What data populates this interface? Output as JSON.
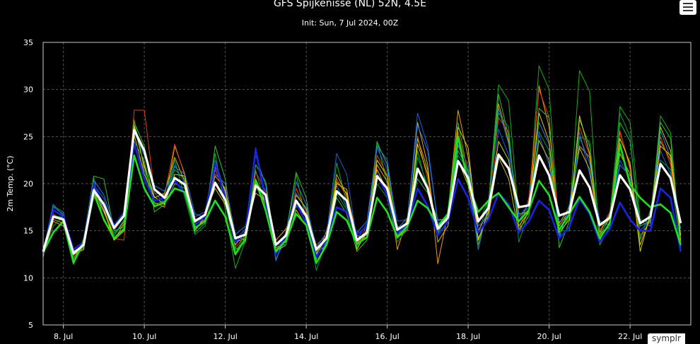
{
  "chart_data": {
    "type": "line",
    "title": "GFS Spijkenisse (NL) 52N, 4.5E",
    "subtitle": "Init: Sun, 7 Jul 2024, 00Z",
    "ylabel": "2m Temp. (°C)",
    "xlabel": "",
    "ylim": [
      5,
      35
    ],
    "yticks": [
      5,
      10,
      15,
      20,
      25,
      30,
      35
    ],
    "xlim_days": [
      7.5,
      23.5
    ],
    "xticks": [
      {
        "day": 8,
        "label": "8. Jul"
      },
      {
        "day": 10,
        "label": "10. Jul"
      },
      {
        "day": 12,
        "label": "12. Jul"
      },
      {
        "day": 14,
        "label": "14. Jul"
      },
      {
        "day": 16,
        "label": "16. Jul"
      },
      {
        "day": 18,
        "label": "18. Jul"
      },
      {
        "day": 20,
        "label": "20. Jul"
      },
      {
        "day": 22,
        "label": "22. Jul"
      }
    ],
    "grid": true,
    "legend": "none",
    "x_step_hours": 6,
    "colors": {
      "background": "#000000",
      "grid": "#555555",
      "frame": "#cccccc",
      "mean": "#ffffff",
      "control": "#22dd22",
      "operational": "#1a24e0"
    },
    "series": [
      {
        "color": "#ffffff",
        "width": 3.2,
        "values": [
          12.8,
          16.5,
          16.2,
          12.6,
          13.5,
          19.3,
          17.8,
          15.3,
          16.6,
          25.7,
          23.5,
          19.4,
          18.5,
          20.6,
          19.9,
          16.0,
          16.7,
          20.1,
          18.3,
          14.2,
          14.6,
          19.8,
          18.8,
          13.5,
          14.5,
          18.2,
          16.6,
          13.0,
          14.2,
          19.2,
          18.2,
          14.0,
          14.8,
          20.8,
          19.5,
          15.1,
          15.8,
          21.6,
          19.5,
          15.2,
          16.4,
          22.4,
          20.6,
          16.0,
          17.4,
          23.1,
          21.6,
          17.5,
          17.7,
          23.0,
          20.9,
          16.6,
          17.0,
          21.4,
          19.6,
          15.6,
          16.4,
          20.9,
          19.4,
          15.8,
          16.5,
          22.1,
          20.6,
          15.8
        ]
      },
      {
        "color": "#22dd22",
        "width": 2.6,
        "values": [
          12.7,
          14.8,
          16.0,
          11.6,
          13.8,
          19.0,
          16.2,
          14.2,
          15.2,
          23.0,
          19.5,
          17.6,
          18.0,
          19.5,
          19.1,
          15.3,
          16.0,
          18.2,
          16.5,
          12.5,
          14.2,
          20.3,
          17.1,
          12.8,
          14.0,
          16.8,
          15.6,
          11.6,
          13.5,
          17.0,
          16.1,
          13.6,
          14.3,
          18.5,
          17.0,
          14.3,
          15.5,
          18.2,
          17.4,
          15.5,
          16.8,
          25.0,
          20.0,
          17.0,
          18.2,
          19.0,
          17.5,
          16.0,
          17.2,
          20.3,
          18.8,
          15.1,
          16.8,
          18.6,
          17.0,
          14.2,
          15.8,
          24.2,
          19.9,
          18.5,
          17.5,
          17.8,
          16.9,
          13.5
        ]
      },
      {
        "color": "#1a24e0",
        "width": 2.6,
        "values": [
          12.5,
          17.2,
          16.5,
          13.0,
          13.8,
          20.0,
          17.5,
          15.5,
          16.8,
          24.3,
          20.5,
          18.2,
          18.5,
          20.3,
          19.0,
          15.6,
          16.5,
          22.2,
          18.5,
          13.8,
          14.8,
          23.6,
          18.0,
          12.5,
          14.6,
          18.0,
          15.8,
          12.2,
          14.1,
          17.5,
          17.0,
          14.6,
          15.4,
          21.0,
          18.8,
          14.8,
          15.6,
          19.5,
          17.6,
          14.5,
          16.0,
          20.5,
          18.5,
          14.8,
          16.2,
          19.0,
          17.8,
          14.8,
          16.0,
          18.2,
          17.2,
          14.2,
          15.4,
          18.4,
          16.8,
          13.8,
          15.2,
          18.0,
          16.2,
          15.0,
          15.0,
          19.5,
          18.5,
          12.8
        ]
      },
      {
        "color": "#10b010",
        "width": 1,
        "values": [
          12.6,
          17.6,
          17.0,
          11.4,
          14.2,
          20.6,
          16.0,
          14.8,
          15.6,
          26.8,
          21.5,
          17.8,
          18.2,
          21.5,
          20.5,
          16.2,
          16.6,
          23.2,
          17.2,
          11.0,
          14.0,
          21.4,
          17.5,
          12.6,
          14.8,
          21.0,
          16.0,
          12.5,
          13.8,
          22.2,
          18.0,
          13.2,
          15.2,
          24.5,
          20.0,
          15.5,
          15.0,
          23.5,
          19.2,
          14.6,
          17.0,
          26.5,
          21.0,
          14.8,
          18.0,
          30.5,
          28.8,
          16.5,
          17.5,
          32.5,
          30.0,
          14.5,
          16.5,
          32.0,
          29.8,
          13.5,
          15.5,
          28.2,
          26.5,
          16.2,
          15.8,
          27.2,
          25.4,
          13.2
        ]
      },
      {
        "color": "#f0a000",
        "width": 1,
        "values": [
          12.4,
          16.0,
          15.5,
          12.8,
          13.5,
          19.5,
          17.4,
          14.0,
          15.8,
          26.0,
          22.0,
          18.0,
          17.5,
          24.0,
          21.0,
          15.2,
          16.2,
          20.8,
          19.5,
          13.5,
          15.0,
          19.0,
          18.2,
          14.0,
          15.2,
          17.8,
          16.4,
          12.0,
          15.0,
          20.2,
          19.0,
          14.5,
          14.2,
          22.0,
          20.2,
          13.0,
          16.4,
          26.5,
          22.0,
          11.5,
          16.8,
          27.8,
          22.8,
          15.0,
          17.0,
          28.5,
          24.5,
          16.8,
          17.0,
          30.4,
          26.0,
          15.8,
          17.5,
          24.0,
          22.8,
          14.0,
          16.0,
          25.5,
          21.8,
          14.2,
          16.2,
          24.5,
          22.5,
          13.8
        ]
      },
      {
        "color": "#e04000",
        "width": 1,
        "values": [
          12.9,
          16.8,
          16.0,
          12.2,
          13.2,
          19.0,
          18.0,
          14.2,
          14.0,
          27.8,
          27.8,
          19.0,
          18.8,
          24.2,
          20.8,
          15.8,
          16.0,
          21.5,
          18.8,
          13.2,
          14.5,
          21.2,
          19.2,
          13.0,
          14.0,
          19.5,
          17.0,
          13.5,
          14.5,
          20.5,
          18.6,
          13.5,
          15.5,
          23.0,
          21.0,
          14.5,
          15.0,
          25.0,
          20.4,
          14.8,
          16.8,
          25.5,
          21.2,
          16.2,
          17.5,
          27.0,
          25.5,
          15.0,
          18.5,
          30.0,
          27.0,
          15.0,
          16.6,
          26.0,
          23.0,
          15.0,
          17.0,
          25.6,
          21.5,
          14.5,
          16.0,
          25.0,
          22.0,
          14.5
        ]
      },
      {
        "color": "#1a60d8",
        "width": 1,
        "values": [
          12.6,
          17.5,
          16.8,
          12.9,
          13.9,
          19.9,
          18.4,
          15.0,
          16.5,
          24.0,
          21.5,
          19.0,
          18.0,
          22.0,
          20.0,
          16.5,
          17.0,
          22.5,
          19.0,
          14.0,
          15.2,
          23.8,
          18.5,
          12.0,
          14.2,
          19.0,
          17.2,
          12.8,
          14.5,
          23.2,
          21.0,
          14.0,
          15.8,
          23.8,
          21.5,
          16.0,
          16.2,
          27.5,
          24.0,
          15.8,
          16.0,
          24.0,
          22.0,
          15.5,
          16.5,
          25.8,
          23.0,
          16.5,
          17.8,
          25.2,
          22.0,
          16.0,
          16.5,
          25.5,
          21.0,
          15.5,
          16.2,
          22.5,
          20.5,
          15.0,
          16.2,
          23.5,
          21.0,
          13.0
        ]
      },
      {
        "color": "#c8c000",
        "width": 1,
        "values": [
          12.7,
          16.2,
          15.8,
          12.4,
          13.6,
          19.2,
          17.0,
          14.5,
          16.0,
          25.2,
          21.0,
          18.5,
          19.0,
          22.8,
          20.2,
          15.5,
          16.8,
          19.5,
          17.8,
          13.8,
          14.2,
          20.5,
          18.0,
          13.2,
          13.8,
          17.2,
          15.5,
          12.5,
          13.5,
          21.0,
          18.8,
          13.8,
          14.6,
          21.5,
          19.2,
          14.2,
          15.2,
          24.8,
          21.5,
          13.8,
          15.5,
          22.5,
          19.8,
          14.2,
          16.5,
          22.8,
          20.5,
          14.8,
          17.2,
          24.6,
          22.5,
          15.5,
          17.2,
          23.8,
          21.5,
          14.8,
          16.8,
          23.2,
          21.0,
          13.5,
          16.5,
          26.0,
          23.5,
          14.0
        ]
      },
      {
        "color": "#30c030",
        "width": 1,
        "values": [
          12.5,
          16.6,
          16.4,
          12.0,
          14.0,
          20.8,
          20.5,
          15.0,
          15.4,
          26.5,
          24.0,
          17.0,
          17.8,
          20.0,
          19.5,
          14.8,
          15.8,
          24.0,
          20.5,
          13.0,
          13.8,
          22.0,
          20.2,
          12.8,
          14.5,
          21.2,
          18.5,
          11.5,
          13.8,
          18.5,
          16.8,
          12.8,
          14.0,
          24.4,
          22.0,
          14.5,
          15.8,
          20.5,
          19.0,
          16.2,
          16.2,
          23.5,
          21.5,
          13.5,
          17.5,
          29.5,
          25.0,
          15.2,
          16.5,
          28.0,
          27.0,
          13.2,
          16.0,
          26.8,
          24.0,
          14.8,
          15.4,
          26.5,
          24.5,
          15.5,
          16.0,
          26.5,
          24.8,
          13.2
        ]
      },
      {
        "color": "#2080e0",
        "width": 1,
        "values": [
          12.8,
          17.8,
          16.6,
          12.8,
          13.2,
          20.4,
          18.8,
          15.6,
          17.0,
          25.5,
          23.0,
          19.8,
          19.2,
          21.8,
          21.0,
          16.8,
          16.4,
          21.0,
          20.0,
          14.6,
          15.5,
          23.0,
          19.8,
          11.8,
          14.8,
          20.2,
          17.8,
          13.2,
          14.8,
          19.8,
          17.5,
          14.8,
          16.0,
          24.0,
          22.5,
          15.2,
          16.4,
          26.2,
          23.5,
          16.0,
          16.5,
          24.2,
          21.0,
          13.0,
          17.8,
          28.0,
          24.2,
          16.0,
          18.0,
          26.5,
          24.2,
          14.2,
          17.8,
          25.0,
          22.2,
          16.0,
          15.6,
          22.0,
          20.8,
          16.0,
          15.5,
          25.6,
          22.8,
          15.2
        ]
      },
      {
        "color": "#d8d000",
        "width": 1,
        "values": [
          12.2,
          16.4,
          16.2,
          12.5,
          13.0,
          19.6,
          17.2,
          14.0,
          15.0,
          26.2,
          21.8,
          18.6,
          17.8,
          21.0,
          20.8,
          15.0,
          16.5,
          21.8,
          19.2,
          14.4,
          14.0,
          20.0,
          17.8,
          12.8,
          13.5,
          18.8,
          17.4,
          12.6,
          14.2,
          20.0,
          19.4,
          13.0,
          15.0,
          22.5,
          20.8,
          14.2,
          15.5,
          24.2,
          21.0,
          14.5,
          16.0,
          26.0,
          23.8,
          14.0,
          17.0,
          24.5,
          22.5,
          15.5,
          17.0,
          27.5,
          24.5,
          14.8,
          16.2,
          27.2,
          23.2,
          14.5,
          16.4,
          24.8,
          22.2,
          12.8,
          16.8,
          24.0,
          23.0,
          14.5
        ]
      },
      {
        "color": "#009a40",
        "width": 1,
        "values": [
          12.6,
          15.5,
          16.5,
          11.8,
          13.4,
          18.5,
          17.8,
          14.5,
          16.2,
          24.5,
          22.5,
          17.5,
          18.2,
          22.5,
          18.5,
          14.6,
          15.5,
          20.2,
          18.0,
          12.6,
          14.8,
          19.5,
          18.6,
          13.6,
          13.5,
          17.6,
          16.8,
          10.8,
          14.0,
          19.0,
          17.2,
          13.4,
          15.0,
          20.0,
          18.5,
          13.8,
          15.2,
          22.8,
          19.8,
          14.8,
          16.6,
          23.0,
          21.5,
          15.8,
          18.2,
          27.5,
          26.0,
          13.8,
          17.0,
          25.5,
          23.5,
          15.0,
          15.0,
          25.0,
          24.5,
          14.2,
          16.8,
          27.5,
          25.0,
          14.0,
          17.2,
          22.5,
          21.5,
          12.8
        ]
      }
    ]
  },
  "credit": "symplr",
  "menu": {
    "icon": "hamburger-icon"
  }
}
